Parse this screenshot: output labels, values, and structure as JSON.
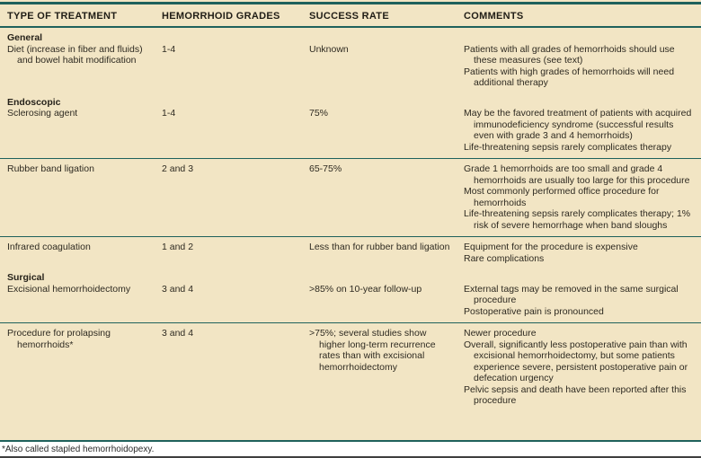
{
  "colors": {
    "background": "#f2e5c4",
    "rule": "#1f615c",
    "text": "#2e2a21"
  },
  "table": {
    "columns": [
      "TYPE OF TREATMENT",
      "HEMORRHOID GRADES",
      "SUCCESS RATE",
      "COMMENTS"
    ],
    "bands": [
      {
        "rows": [
          {
            "section": "General"
          },
          {
            "treatment": "Diet (increase in fiber and fluids) and bowel habit modification",
            "grades": "1-4",
            "success": "Unknown",
            "comments": [
              "Patients with all grades of hemorrhoids should use these measures (see text)",
              "Patients with high grades of hemorrhoids will need additional therapy"
            ]
          },
          {
            "section": "Endoscopic"
          },
          {
            "treatment": "Sclerosing agent",
            "grades": "1-4",
            "success": "75%",
            "comments": [
              "May be the favored treatment of patients with acquired immunodeficiency syndrome (successful results even with grade 3 and 4 hemorrhoids)",
              "Life-threatening sepsis rarely complicates therapy"
            ]
          }
        ]
      },
      {
        "rows": [
          {
            "treatment": "Rubber band ligation",
            "grades": "2 and 3",
            "success": "65-75%",
            "comments": [
              "Grade 1 hemorrhoids are too small and grade 4 hemorrhoids are usually too large for this procedure",
              "Most commonly performed office procedure for hemorrhoids",
              "Life-threatening sepsis rarely complicates therapy; 1% risk of severe hemorrhage when band sloughs"
            ]
          }
        ]
      },
      {
        "rows": [
          {
            "treatment": "Infrared coagulation",
            "grades": "1 and 2",
            "success": "Less than for rubber band ligation",
            "comments": [
              "Equipment for the procedure is expensive",
              "Rare complications"
            ]
          },
          {
            "section": "Surgical"
          },
          {
            "treatment": "Excisional hemorrhoidectomy",
            "grades": "3 and 4",
            "success": ">85% on 10-year follow-up",
            "comments": [
              "External tags may be removed in the same surgical procedure",
              "Postoperative pain is pronounced"
            ]
          }
        ]
      },
      {
        "rows": [
          {
            "treatment": "Procedure for prolapsing hemorrhoids*",
            "grades": "3 and 4",
            "success": ">75%; several studies show higher long-term recurrence rates than with excisional hemorrhoidectomy",
            "comments": [
              "Newer procedure",
              "Overall, significantly less postoperative pain than with excisional hemorrhoidectomy, but some patients experience severe, persistent postoperative pain or defecation urgency",
              "Pelvic sepsis and death have been reported after this procedure"
            ]
          }
        ]
      }
    ],
    "footnote": "*Also called stapled hemorrhoidopexy."
  }
}
